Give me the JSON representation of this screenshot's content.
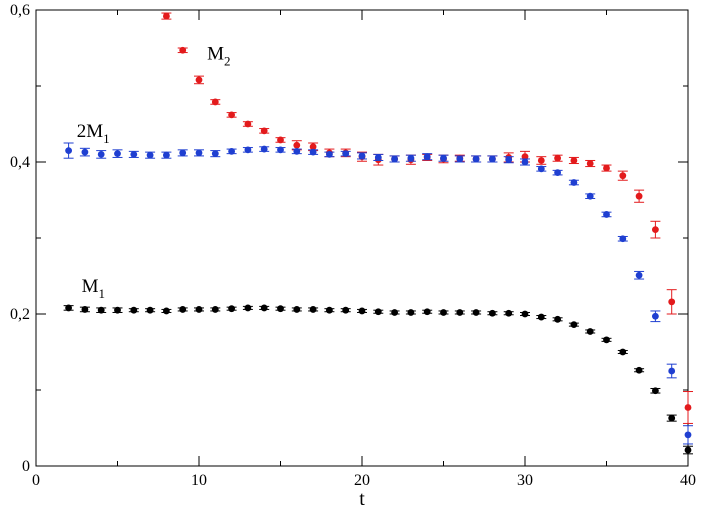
{
  "chart_data": {
    "type": "scatter",
    "xlabel": "t",
    "ylabel": "",
    "xlim": [
      0,
      40
    ],
    "ylim": [
      0,
      0.6
    ],
    "x_ticks": [
      0,
      10,
      20,
      30,
      40
    ],
    "x_tick_labels": [
      "0",
      "10",
      "20",
      "30",
      "40"
    ],
    "y_ticks": [
      0,
      0.2,
      0.4,
      0.6
    ],
    "y_tick_labels": [
      "0",
      "0,2",
      "0,4",
      "0,6"
    ],
    "grid": false,
    "legend": "none",
    "annotations": [
      {
        "text": "M",
        "sub": "2",
        "x": 10.5,
        "y": 0.535
      },
      {
        "text": "2M",
        "sub": "1",
        "x": 2.5,
        "y": 0.433
      },
      {
        "text": "M",
        "sub": "1",
        "x": 2.8,
        "y": 0.229
      }
    ],
    "series": [
      {
        "color": "#e31a1c",
        "points": [
          {
            "x": 8,
            "y": 0.592,
            "err": 0.004
          },
          {
            "x": 9,
            "y": 0.547,
            "err": 0.003
          },
          {
            "x": 10,
            "y": 0.508,
            "err": 0.005
          },
          {
            "x": 11,
            "y": 0.479,
            "err": 0.003
          },
          {
            "x": 12,
            "y": 0.462,
            "err": 0.003
          },
          {
            "x": 13,
            "y": 0.45,
            "err": 0.003
          },
          {
            "x": 14,
            "y": 0.441,
            "err": 0.003
          },
          {
            "x": 15,
            "y": 0.429,
            "err": 0.003
          },
          {
            "x": 16,
            "y": 0.422,
            "err": 0.006
          },
          {
            "x": 17,
            "y": 0.42,
            "err": 0.005
          },
          {
            "x": 18,
            "y": 0.412,
            "err": 0.005
          },
          {
            "x": 19,
            "y": 0.412,
            "err": 0.005
          },
          {
            "x": 20,
            "y": 0.407,
            "err": 0.006
          },
          {
            "x": 21,
            "y": 0.403,
            "err": 0.007
          },
          {
            "x": 22,
            "y": 0.404,
            "err": 0.004
          },
          {
            "x": 23,
            "y": 0.403,
            "err": 0.006
          },
          {
            "x": 24,
            "y": 0.406,
            "err": 0.004
          },
          {
            "x": 25,
            "y": 0.404,
            "err": 0.005
          },
          {
            "x": 26,
            "y": 0.405,
            "err": 0.004
          },
          {
            "x": 27,
            "y": 0.404,
            "err": 0.004
          },
          {
            "x": 28,
            "y": 0.404,
            "err": 0.004
          },
          {
            "x": 29,
            "y": 0.406,
            "err": 0.006
          },
          {
            "x": 30,
            "y": 0.407,
            "err": 0.007
          },
          {
            "x": 31,
            "y": 0.402,
            "err": 0.005
          },
          {
            "x": 32,
            "y": 0.405,
            "err": 0.004
          },
          {
            "x": 33,
            "y": 0.402,
            "err": 0.004
          },
          {
            "x": 34,
            "y": 0.398,
            "err": 0.004
          },
          {
            "x": 35,
            "y": 0.392,
            "err": 0.004
          },
          {
            "x": 36,
            "y": 0.382,
            "err": 0.006
          },
          {
            "x": 37,
            "y": 0.355,
            "err": 0.008
          },
          {
            "x": 38,
            "y": 0.311,
            "err": 0.011
          },
          {
            "x": 39,
            "y": 0.216,
            "err": 0.016
          },
          {
            "x": 40,
            "y": 0.077,
            "err": 0.021
          }
        ]
      },
      {
        "color": "#1f3fd1",
        "points": [
          {
            "x": 2,
            "y": 0.415,
            "err": 0.01
          },
          {
            "x": 3,
            "y": 0.413,
            "err": 0.005
          },
          {
            "x": 4,
            "y": 0.41,
            "err": 0.005
          },
          {
            "x": 5,
            "y": 0.411,
            "err": 0.005
          },
          {
            "x": 6,
            "y": 0.41,
            "err": 0.004
          },
          {
            "x": 7,
            "y": 0.409,
            "err": 0.004
          },
          {
            "x": 8,
            "y": 0.409,
            "err": 0.004
          },
          {
            "x": 9,
            "y": 0.412,
            "err": 0.004
          },
          {
            "x": 10,
            "y": 0.412,
            "err": 0.004
          },
          {
            "x": 11,
            "y": 0.411,
            "err": 0.004
          },
          {
            "x": 12,
            "y": 0.414,
            "err": 0.003
          },
          {
            "x": 13,
            "y": 0.416,
            "err": 0.003
          },
          {
            "x": 14,
            "y": 0.417,
            "err": 0.003
          },
          {
            "x": 15,
            "y": 0.416,
            "err": 0.003
          },
          {
            "x": 16,
            "y": 0.414,
            "err": 0.003
          },
          {
            "x": 17,
            "y": 0.413,
            "err": 0.003
          },
          {
            "x": 18,
            "y": 0.41,
            "err": 0.003
          },
          {
            "x": 19,
            "y": 0.411,
            "err": 0.003
          },
          {
            "x": 20,
            "y": 0.408,
            "err": 0.004
          },
          {
            "x": 21,
            "y": 0.406,
            "err": 0.004
          },
          {
            "x": 22,
            "y": 0.404,
            "err": 0.004
          },
          {
            "x": 23,
            "y": 0.405,
            "err": 0.004
          },
          {
            "x": 24,
            "y": 0.407,
            "err": 0.004
          },
          {
            "x": 25,
            "y": 0.405,
            "err": 0.004
          },
          {
            "x": 26,
            "y": 0.404,
            "err": 0.004
          },
          {
            "x": 27,
            "y": 0.404,
            "err": 0.004
          },
          {
            "x": 28,
            "y": 0.404,
            "err": 0.004
          },
          {
            "x": 29,
            "y": 0.403,
            "err": 0.004
          },
          {
            "x": 30,
            "y": 0.4,
            "err": 0.004
          },
          {
            "x": 31,
            "y": 0.391,
            "err": 0.003
          },
          {
            "x": 32,
            "y": 0.386,
            "err": 0.003
          },
          {
            "x": 33,
            "y": 0.373,
            "err": 0.003
          },
          {
            "x": 34,
            "y": 0.355,
            "err": 0.003
          },
          {
            "x": 35,
            "y": 0.331,
            "err": 0.003
          },
          {
            "x": 36,
            "y": 0.299,
            "err": 0.003
          },
          {
            "x": 37,
            "y": 0.251,
            "err": 0.005
          },
          {
            "x": 38,
            "y": 0.197,
            "err": 0.007
          },
          {
            "x": 39,
            "y": 0.125,
            "err": 0.009
          },
          {
            "x": 40,
            "y": 0.041,
            "err": 0.012
          }
        ]
      },
      {
        "color": "#000000",
        "points": [
          {
            "x": 2,
            "y": 0.208,
            "err": 0.003
          },
          {
            "x": 3,
            "y": 0.206,
            "err": 0.003
          },
          {
            "x": 4,
            "y": 0.205,
            "err": 0.003
          },
          {
            "x": 5,
            "y": 0.205,
            "err": 0.003
          },
          {
            "x": 6,
            "y": 0.205,
            "err": 0.002
          },
          {
            "x": 7,
            "y": 0.205,
            "err": 0.002
          },
          {
            "x": 8,
            "y": 0.204,
            "err": 0.002
          },
          {
            "x": 9,
            "y": 0.206,
            "err": 0.002
          },
          {
            "x": 10,
            "y": 0.206,
            "err": 0.002
          },
          {
            "x": 11,
            "y": 0.206,
            "err": 0.002
          },
          {
            "x": 12,
            "y": 0.207,
            "err": 0.002
          },
          {
            "x": 13,
            "y": 0.208,
            "err": 0.002
          },
          {
            "x": 14,
            "y": 0.208,
            "err": 0.002
          },
          {
            "x": 15,
            "y": 0.207,
            "err": 0.002
          },
          {
            "x": 16,
            "y": 0.206,
            "err": 0.002
          },
          {
            "x": 17,
            "y": 0.206,
            "err": 0.002
          },
          {
            "x": 18,
            "y": 0.205,
            "err": 0.002
          },
          {
            "x": 19,
            "y": 0.205,
            "err": 0.002
          },
          {
            "x": 20,
            "y": 0.204,
            "err": 0.002
          },
          {
            "x": 21,
            "y": 0.203,
            "err": 0.002
          },
          {
            "x": 22,
            "y": 0.202,
            "err": 0.002
          },
          {
            "x": 23,
            "y": 0.202,
            "err": 0.002
          },
          {
            "x": 24,
            "y": 0.203,
            "err": 0.002
          },
          {
            "x": 25,
            "y": 0.202,
            "err": 0.002
          },
          {
            "x": 26,
            "y": 0.202,
            "err": 0.002
          },
          {
            "x": 27,
            "y": 0.202,
            "err": 0.002
          },
          {
            "x": 28,
            "y": 0.201,
            "err": 0.002
          },
          {
            "x": 29,
            "y": 0.201,
            "err": 0.002
          },
          {
            "x": 30,
            "y": 0.2,
            "err": 0.002
          },
          {
            "x": 31,
            "y": 0.196,
            "err": 0.002
          },
          {
            "x": 32,
            "y": 0.193,
            "err": 0.002
          },
          {
            "x": 33,
            "y": 0.186,
            "err": 0.002
          },
          {
            "x": 34,
            "y": 0.177,
            "err": 0.002
          },
          {
            "x": 35,
            "y": 0.166,
            "err": 0.002
          },
          {
            "x": 36,
            "y": 0.15,
            "err": 0.002
          },
          {
            "x": 37,
            "y": 0.126,
            "err": 0.002
          },
          {
            "x": 38,
            "y": 0.099,
            "err": 0.003
          },
          {
            "x": 39,
            "y": 0.063,
            "err": 0.004
          },
          {
            "x": 40,
            "y": 0.021,
            "err": 0.005
          }
        ]
      }
    ]
  }
}
